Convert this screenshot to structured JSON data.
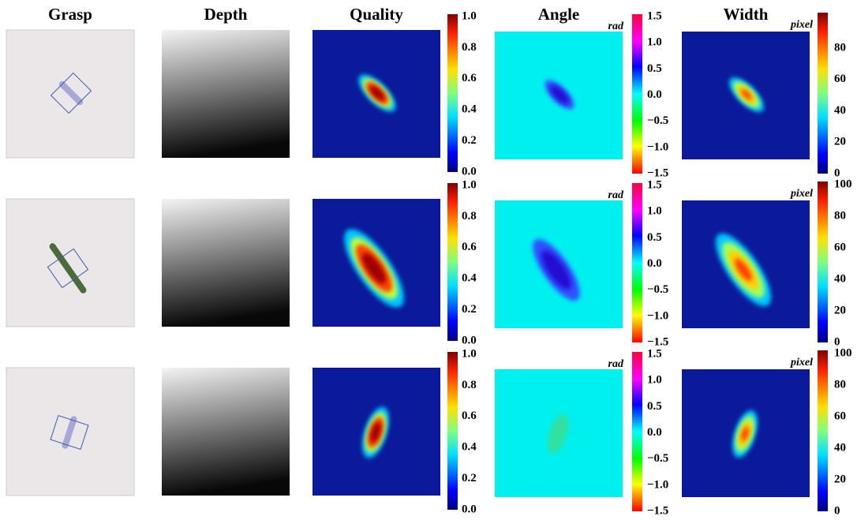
{
  "columns": [
    "Grasp",
    "Depth",
    "Quality",
    "Angle",
    "Width"
  ],
  "rows": [
    {
      "quality_ticks": [
        "1.0",
        "0.8",
        "0.6",
        "0.4",
        "0.2",
        "0.0"
      ],
      "angle_unit": "rad",
      "angle_ticks": [
        "1.5",
        "1.0",
        "0.5",
        "0.0",
        "−0.5",
        "−1.0",
        "−1.5"
      ],
      "width_unit": "pixel",
      "width_ticks": [
        "80",
        "60",
        "40",
        "20",
        "0"
      ]
    },
    {
      "quality_ticks": [
        "1.0",
        "0.8",
        "0.6",
        "0.4",
        "0.2",
        "0.0"
      ],
      "angle_unit": "rad",
      "angle_ticks": [
        "1.5",
        "1.0",
        "0.5",
        "0.0",
        "−0.5",
        "−1.0",
        "−1.5"
      ],
      "width_unit": "pixel",
      "width_ticks": [
        "100",
        "80",
        "60",
        "40",
        "20",
        "0"
      ]
    },
    {
      "quality_ticks": [
        "1.0",
        "0.8",
        "0.6",
        "0.4",
        "0.2",
        "0.0"
      ],
      "angle_unit": "rad",
      "angle_ticks": [
        "1.5",
        "1.0",
        "0.5",
        "0.0",
        "−0.5",
        "−1.0",
        "−1.5"
      ],
      "width_unit": "pixel",
      "width_ticks": [
        "100",
        "80",
        "60",
        "40",
        "20",
        "0"
      ]
    }
  ]
}
